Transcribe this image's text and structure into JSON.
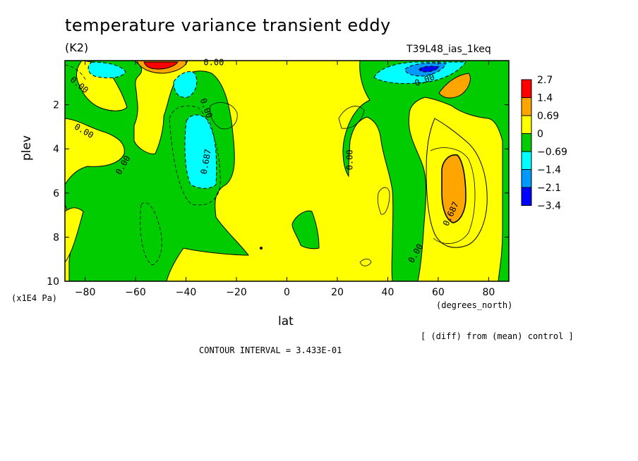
{
  "chart_data": {
    "type": "contour",
    "title": "temperature variance transient eddy",
    "units": "(K2)",
    "run_id": "T39L48_ias_1keq",
    "xlabel": "lat",
    "x_units": "(degrees_north)",
    "ylabel": "plev",
    "y_units": "(x1E4 Pa)",
    "xlim": [
      -88,
      88
    ],
    "ylim": [
      10,
      0
    ],
    "x_ticks": [
      -80,
      -60,
      -40,
      -20,
      0,
      20,
      40,
      60,
      80
    ],
    "x_tick_labels": [
      "−80",
      "−60",
      "−40",
      "−20",
      "0",
      "20",
      "40",
      "60",
      "80"
    ],
    "y_ticks": [
      2,
      4,
      6,
      8,
      10
    ],
    "y_tick_labels": [
      "2",
      "4",
      "6",
      "8",
      "10"
    ],
    "colorbar": {
      "labels": [
        "2.7",
        "1.4",
        "0.69",
        "0",
        "−0.69",
        "−1.4",
        "−2.1",
        "−3.4"
      ],
      "colors": [
        "#ff0000",
        "#ffa500",
        "#ffff00",
        "#00cc00",
        "#00ffff",
        "#0099ff",
        "#0000ff"
      ]
    },
    "contour_labels": [
      {
        "text": "0.00",
        "lat": -29,
        "p": 0.2,
        "rot": 0
      },
      {
        "text": "0.00",
        "lat": -83,
        "p": 1.2,
        "rot": 40
      },
      {
        "text": "0.00",
        "lat": -81,
        "p": 3.3,
        "rot": 30
      },
      {
        "text": "0.00",
        "lat": -64,
        "p": 4.8,
        "rot": -60
      },
      {
        "text": "0.00",
        "lat": -33,
        "p": 2.2,
        "rot": 70
      },
      {
        "text": "0.687",
        "lat": -31,
        "p": 4.6,
        "rot": -80
      },
      {
        "text": "0.00",
        "lat": 26,
        "p": 4.5,
        "rot": -90
      },
      {
        "text": "0.00",
        "lat": 55,
        "p": 1.0,
        "rot": -20
      },
      {
        "text": "0.687",
        "lat": 66,
        "p": 7.0,
        "rot": -65
      },
      {
        "text": "0.00",
        "lat": 52,
        "p": 8.8,
        "rot": -60
      }
    ],
    "footer_note": "[ (diff) from (mean) control ]",
    "contour_interval": "CONTOUR INTERVAL = 3.433E-01"
  }
}
